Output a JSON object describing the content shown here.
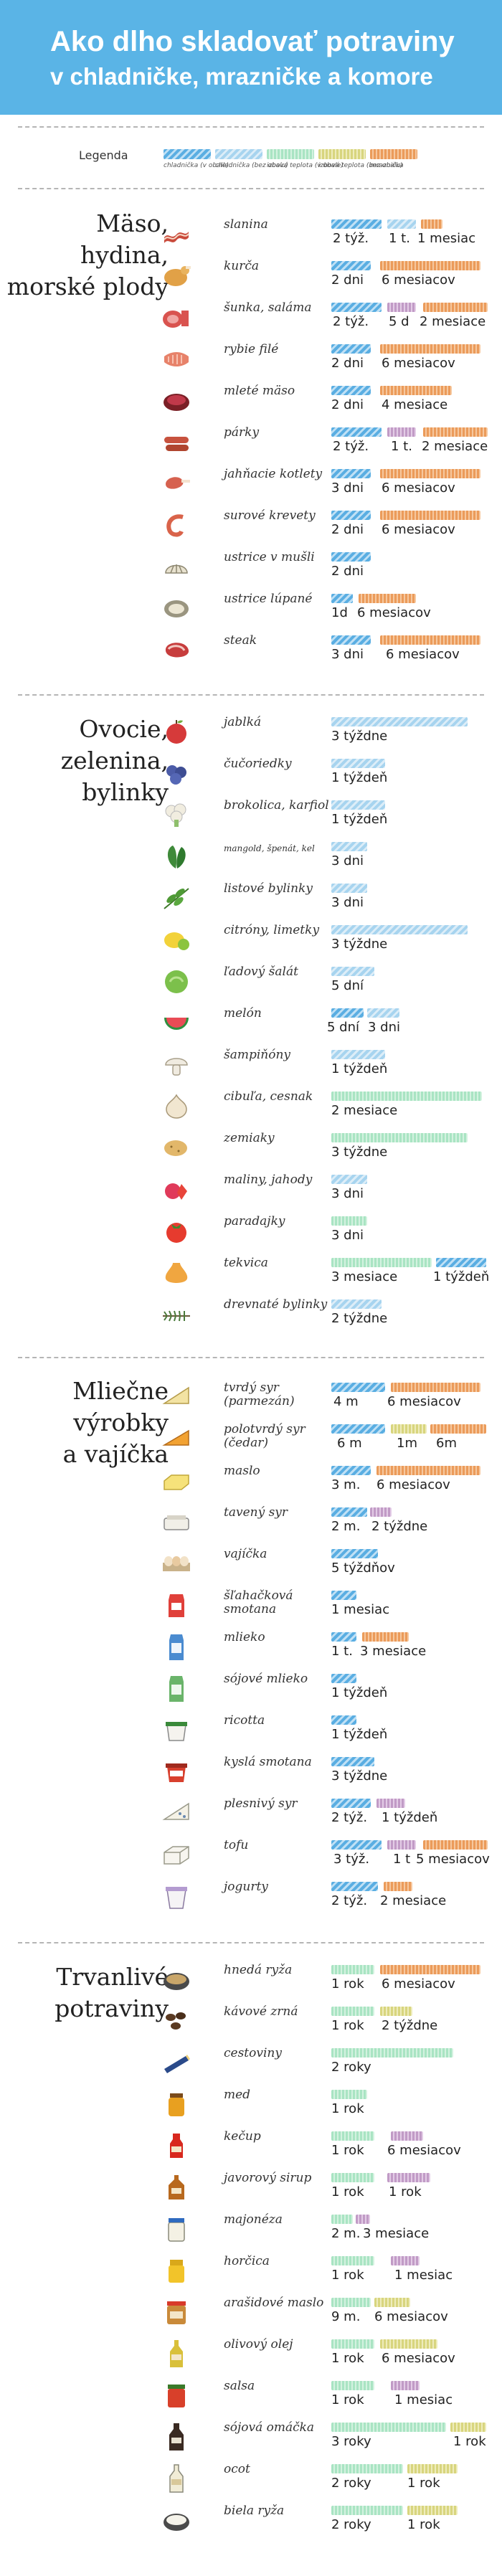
{
  "header": {
    "title_line1": "Ako dlho skladovať potraviny",
    "title_line2": "v chladničke, mrazničke a komore"
  },
  "legend": {
    "label": "Legenda",
    "items": [
      {
        "text": "chladnička (v obale)",
        "color": "#5aaee2"
      },
      {
        "text": "chladnička (bez obalu)",
        "color": "#a7d4ef"
      },
      {
        "text": "izbová teplota (v obale)",
        "color": "#a9e4c3"
      },
      {
        "text": "izbová teplota (bez obalu)",
        "color": "#d8d57e"
      },
      {
        "text": "mraznička",
        "color": "#eb9b5a"
      }
    ]
  },
  "sections": [
    {
      "title": [
        "Mäso,",
        "hydina,",
        "morské plody"
      ]
    },
    {
      "title": [
        "Ovocie,",
        "zelenina,",
        "bylinky"
      ]
    },
    {
      "title": [
        "Mliečne",
        "výrobky",
        "a vajíčka"
      ]
    },
    {
      "title": [
        "Trvanlivé",
        "potraviny"
      ]
    }
  ],
  "items": [
    {
      "name": "slanina",
      "icon": "bacon-icon",
      "labels": [
        "2 týž.",
        "1 t.",
        "1 mesiac"
      ]
    },
    {
      "name": "kurča",
      "icon": "chicken-icon",
      "labels": [
        "2 dni",
        "6 mesiacov"
      ]
    },
    {
      "name": "šunka, saláma",
      "icon": "ham-icon",
      "labels": [
        "2 týž.",
        "5 d",
        "2 mesiace"
      ]
    },
    {
      "name": "rybie filé",
      "icon": "fish-fillet-icon",
      "labels": [
        "2 dni",
        "6 mesiacov"
      ]
    },
    {
      "name": "mleté mäso",
      "icon": "ground-meat-icon",
      "labels": [
        "2 dni",
        "4 mesiace"
      ]
    },
    {
      "name": "párky",
      "icon": "sausage-icon",
      "labels": [
        "2 týž.",
        "1 t.",
        "2 mesiace"
      ]
    },
    {
      "name": "jahňacie kotlety",
      "icon": "lamb-chop-icon",
      "labels": [
        "3 dni",
        "6 mesiacov"
      ]
    },
    {
      "name": "surové krevety",
      "icon": "shrimp-icon",
      "labels": [
        "2 dni",
        "6 mesiacov"
      ]
    },
    {
      "name": "ustrice v mušli",
      "icon": "oyster-shell-icon",
      "labels": [
        "2 dni"
      ]
    },
    {
      "name": "ustrice lúpané",
      "icon": "shucked-oyster-icon",
      "labels": [
        "1d",
        "6 mesiacov"
      ]
    },
    {
      "name": "steak",
      "icon": "steak-icon",
      "labels": [
        "3 dni",
        "6 mesiacov"
      ]
    },
    {
      "name": "jablká",
      "icon": "apple-icon",
      "labels": [
        "3 týždne"
      ]
    },
    {
      "name": "čučoriedky",
      "icon": "blueberry-icon",
      "labels": [
        "1 týždeň"
      ]
    },
    {
      "name": "brokolica, karfiol",
      "icon": "broccoli-icon",
      "labels": [
        "1 týždeň"
      ]
    },
    {
      "name": "mangold, špenát, kel",
      "icon": "leafy-greens-icon",
      "labels": [
        "3 dni"
      ]
    },
    {
      "name": "listové bylinky",
      "icon": "herbs-icon",
      "labels": [
        "3 dni"
      ]
    },
    {
      "name": "citróny, limetky",
      "icon": "lemon-icon",
      "labels": [
        "3 týždne"
      ]
    },
    {
      "name": "ľadový šalát",
      "icon": "lettuce-icon",
      "labels": [
        "5 dní"
      ]
    },
    {
      "name": "melón",
      "icon": "melon-icon",
      "labels": [
        "5 dní",
        "3 dni"
      ]
    },
    {
      "name": "šampiňóny",
      "icon": "mushroom-icon",
      "labels": [
        "1 týždeň"
      ]
    },
    {
      "name": "cibuľa, cesnak",
      "icon": "onion-icon",
      "labels": [
        "2 mesiace"
      ]
    },
    {
      "name": "zemiaky",
      "icon": "potato-icon",
      "labels": [
        "3 týždne"
      ]
    },
    {
      "name": "maliny, jahody",
      "icon": "raspberry-icon",
      "labels": [
        "3 dni"
      ]
    },
    {
      "name": "paradajky",
      "icon": "tomato-icon",
      "labels": [
        "3 dni"
      ]
    },
    {
      "name": "tekvica",
      "icon": "squash-icon",
      "labels": [
        "3 mesiace",
        "1 týždeň"
      ]
    },
    {
      "name": "drevnaté bylinky",
      "icon": "rosemary-icon",
      "labels": [
        "2 týždne"
      ]
    },
    {
      "name": "tvrdý syr (parmezán)",
      "icon": "hard-cheese-icon",
      "labels": [
        "4 m",
        "6 mesiacov"
      ]
    },
    {
      "name": "polotvrdý syr (čedar)",
      "icon": "cheddar-icon",
      "labels": [
        "6 m",
        "1m",
        "6m"
      ]
    },
    {
      "name": "maslo",
      "icon": "butter-icon",
      "labels": [
        "3 m.",
        "6 mesiacov"
      ]
    },
    {
      "name": "tavený syr",
      "icon": "processed-cheese-icon",
      "labels": [
        "2 m.",
        "2 týždne"
      ]
    },
    {
      "name": "vajíčka",
      "icon": "eggs-icon",
      "labels": [
        "5 týždňov"
      ]
    },
    {
      "name": "šľahačková smotana",
      "icon": "cream-icon",
      "labels": [
        "1 mesiac"
      ]
    },
    {
      "name": "mlieko",
      "icon": "milk-icon",
      "labels": [
        "1 t.",
        "3 mesiace"
      ]
    },
    {
      "name": "sójové mlieko",
      "icon": "soy-milk-icon",
      "labels": [
        "1 týždeň"
      ]
    },
    {
      "name": "ricotta",
      "icon": "ricotta-icon",
      "labels": [
        "1 týždeň"
      ]
    },
    {
      "name": "kyslá smotana",
      "icon": "sour-cream-icon",
      "labels": [
        "3 týždne"
      ]
    },
    {
      "name": "plesnivý syr",
      "icon": "blue-cheese-icon",
      "labels": [
        "2 týž.",
        "1 týždeň"
      ]
    },
    {
      "name": "tofu",
      "icon": "tofu-icon",
      "labels": [
        "3 týž.",
        "1 t",
        "5 mesiacov"
      ]
    },
    {
      "name": "jogurty",
      "icon": "yogurt-icon",
      "labels": [
        "2 týž.",
        "2 mesiace"
      ]
    },
    {
      "name": "hnedá ryža",
      "icon": "brown-rice-icon",
      "labels": [
        "1 rok",
        "6 mesiacov"
      ]
    },
    {
      "name": "kávové zrná",
      "icon": "coffee-beans-icon",
      "labels": [
        "1 rok",
        "2 týždne"
      ]
    },
    {
      "name": "cestoviny",
      "icon": "pasta-icon",
      "labels": [
        "2 roky"
      ]
    },
    {
      "name": "med",
      "icon": "honey-icon",
      "labels": [
        "1 rok"
      ]
    },
    {
      "name": "kečup",
      "icon": "ketchup-icon",
      "labels": [
        "1 rok",
        "6 mesiacov"
      ]
    },
    {
      "name": "javorový sirup",
      "icon": "maple-syrup-icon",
      "labels": [
        "1 rok",
        "1 rok"
      ]
    },
    {
      "name": "majonéza",
      "icon": "mayonnaise-icon",
      "labels": [
        "2 m.",
        "3 mesiace"
      ]
    },
    {
      "name": "horčica",
      "icon": "mustard-icon",
      "labels": [
        "1 rok",
        "1 mesiac"
      ]
    },
    {
      "name": "arašidové maslo",
      "icon": "peanut-butter-icon",
      "labels": [
        "9 m.",
        "6 mesiacov"
      ]
    },
    {
      "name": "olivový olej",
      "icon": "olive-oil-icon",
      "labels": [
        "1 rok",
        "6 mesiacov"
      ]
    },
    {
      "name": "salsa",
      "icon": "salsa-icon",
      "labels": [
        "1 rok",
        "1 mesiac"
      ]
    },
    {
      "name": "sójová omáčka",
      "icon": "soy-sauce-icon",
      "labels": [
        "3 roky",
        "1 rok"
      ]
    },
    {
      "name": "ocot",
      "icon": "vinegar-icon",
      "labels": [
        "2 roky",
        "1 rok"
      ]
    },
    {
      "name": "biela ryža",
      "icon": "white-rice-icon",
      "labels": [
        "2 roky",
        "1 rok"
      ]
    }
  ]
}
